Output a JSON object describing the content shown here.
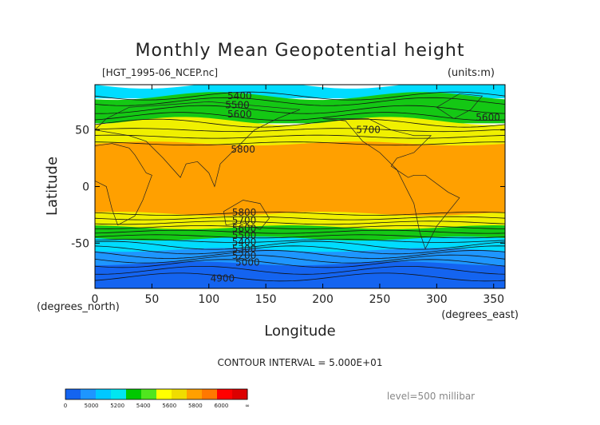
{
  "chart_data": {
    "type": "heatmap",
    "title": "Monthly Mean Geopotential height",
    "source_label": "[HGT_1995-06_NCEP.nc]",
    "units_label": "(units:m)",
    "xlabel": "Longitude",
    "ylabel": "Latitude",
    "x_unit_label": "(degrees_east)",
    "y_unit_label": "(degrees_north)",
    "xlim": [
      0,
      360
    ],
    "ylim": [
      -90,
      90
    ],
    "x_ticks": [
      0,
      50,
      100,
      150,
      200,
      250,
      300,
      350
    ],
    "y_ticks": [
      -50,
      0,
      50
    ],
    "contour_interval_label": "CONTOUR INTERVAL = 5.000E+01",
    "level_label": "level=500 millibar",
    "colorbar_ticks": [
      "0",
      "5000",
      "5200",
      "5400",
      "5600",
      "5800",
      "6000",
      "∞"
    ],
    "colorbar_colors": [
      "#1464f0",
      "#1e96ff",
      "#00c8ff",
      "#00e6f0",
      "#00c800",
      "#50e61e",
      "#ffff00",
      "#f0dc00",
      "#ffa000",
      "#ff7800",
      "#ff0000",
      "#dc0000"
    ],
    "zonal_bands": [
      {
        "lat_top": 90,
        "lat_bottom": 80,
        "range": "5300-5400"
      },
      {
        "lat_top": 80,
        "lat_bottom": 58,
        "range": "5400-5600"
      },
      {
        "lat_top": 58,
        "lat_bottom": 38,
        "range": "5600-5800"
      },
      {
        "lat_top": 38,
        "lat_bottom": -24,
        "range": "5800-6000"
      },
      {
        "lat_top": -24,
        "lat_bottom": -36,
        "range": "5600-5800"
      },
      {
        "lat_top": -36,
        "lat_bottom": -46,
        "range": "5400-5600"
      },
      {
        "lat_top": -46,
        "lat_bottom": -56,
        "range": "5300-5400"
      },
      {
        "lat_top": -56,
        "lat_bottom": -68,
        "range": "5100-5300"
      },
      {
        "lat_top": -68,
        "lat_bottom": -90,
        "range": "4900-5100"
      }
    ],
    "contour_labels": [
      {
        "text": "5400",
        "lon": 127,
        "lat": 80
      },
      {
        "text": "5500",
        "lon": 125,
        "lat": 72
      },
      {
        "text": "5600",
        "lon": 127,
        "lat": 64
      },
      {
        "text": "5700",
        "lon": 240,
        "lat": 50
      },
      {
        "text": "5600",
        "lon": 345,
        "lat": 61
      },
      {
        "text": "5800",
        "lon": 130,
        "lat": 33
      },
      {
        "text": "5800",
        "lon": 131,
        "lat": -23
      },
      {
        "text": "5700",
        "lon": 131,
        "lat": -30
      },
      {
        "text": "5600",
        "lon": 131,
        "lat": -37
      },
      {
        "text": "5500",
        "lon": 131,
        "lat": -43
      },
      {
        "text": "5400",
        "lon": 131,
        "lat": -49
      },
      {
        "text": "5300",
        "lon": 131,
        "lat": -55
      },
      {
        "text": "5200",
        "lon": 131,
        "lat": -61
      },
      {
        "text": "5000",
        "lon": 134,
        "lat": -67
      },
      {
        "text": "4900",
        "lon": 112,
        "lat": -81
      }
    ]
  }
}
